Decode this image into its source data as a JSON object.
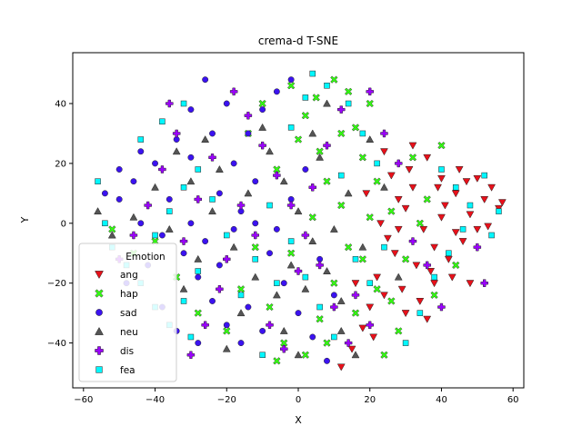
{
  "chart_data": {
    "type": "scatter",
    "title": "crema-d T-SNE",
    "xlabel": "X",
    "ylabel": "Y",
    "xlim": [
      -63,
      63
    ],
    "ylim": [
      -55,
      57
    ],
    "xticks": [
      -60,
      -40,
      -20,
      0,
      20,
      40,
      60
    ],
    "yticks": [
      -40,
      -20,
      0,
      20,
      40
    ],
    "grid": false,
    "legend": {
      "title": "Emotion",
      "placement": "lower-left"
    },
    "series": [
      {
        "name": "ang",
        "marker": "triangle-down",
        "color": "#e8101a",
        "points": [
          [
            52,
            8
          ],
          [
            56,
            5
          ],
          [
            48,
            3
          ],
          [
            44,
            10
          ],
          [
            40,
            15
          ],
          [
            36,
            22
          ],
          [
            32,
            26
          ],
          [
            50,
            -2
          ],
          [
            46,
            -6
          ],
          [
            42,
            -12
          ],
          [
            38,
            -20
          ],
          [
            34,
            -26
          ],
          [
            30,
            -30
          ],
          [
            54,
            12
          ],
          [
            45,
            18
          ],
          [
            28,
            8
          ],
          [
            25,
            -5
          ],
          [
            22,
            -18
          ],
          [
            20,
            -28
          ],
          [
            18,
            -35
          ],
          [
            15,
            -42
          ],
          [
            12,
            -48
          ],
          [
            40,
            2
          ],
          [
            35,
            -2
          ],
          [
            30,
            5
          ],
          [
            26,
            16
          ],
          [
            24,
            24
          ],
          [
            47,
            14
          ],
          [
            53,
            -1
          ],
          [
            38,
            -8
          ],
          [
            33,
            -14
          ],
          [
            29,
            -22
          ],
          [
            43,
            -18
          ],
          [
            48,
            -20
          ],
          [
            39,
            12
          ],
          [
            31,
            18
          ],
          [
            27,
            -10
          ],
          [
            23,
            0
          ],
          [
            19,
            10
          ],
          [
            16,
            -20
          ],
          [
            21,
            -38
          ],
          [
            36,
            -32
          ],
          [
            50,
            15
          ],
          [
            57,
            7
          ],
          [
            44,
            -3
          ],
          [
            41,
            6
          ],
          [
            37,
            -16
          ],
          [
            32,
            12
          ],
          [
            28,
            -2
          ],
          [
            24,
            -24
          ]
        ]
      },
      {
        "name": "hap",
        "marker": "x",
        "color": "#33ff11",
        "points": [
          [
            10,
            48
          ],
          [
            5,
            42
          ],
          [
            12,
            30
          ],
          [
            18,
            22
          ],
          [
            22,
            14
          ],
          [
            26,
            4
          ],
          [
            14,
            -8
          ],
          [
            10,
            -20
          ],
          [
            6,
            -32
          ],
          [
            2,
            -44
          ],
          [
            -4,
            -40
          ],
          [
            -8,
            -28
          ],
          [
            -2,
            -10
          ],
          [
            4,
            2
          ],
          [
            8,
            14
          ],
          [
            16,
            32
          ],
          [
            20,
            40
          ],
          [
            -10,
            40
          ],
          [
            -14,
            30
          ],
          [
            -6,
            18
          ],
          [
            0,
            28
          ],
          [
            30,
            -12
          ],
          [
            34,
            0
          ],
          [
            38,
            -24
          ],
          [
            28,
            -36
          ],
          [
            24,
            -44
          ],
          [
            18,
            -12
          ],
          [
            12,
            6
          ],
          [
            -12,
            -8
          ],
          [
            -16,
            -22
          ],
          [
            -20,
            -36
          ],
          [
            -28,
            -30
          ],
          [
            -34,
            -18
          ],
          [
            -40,
            -6
          ],
          [
            -46,
            -10
          ],
          [
            -52,
            -2
          ],
          [
            6,
            24
          ],
          [
            2,
            36
          ],
          [
            -2,
            46
          ],
          [
            14,
            44
          ],
          [
            22,
            -22
          ],
          [
            16,
            -30
          ],
          [
            8,
            -40
          ],
          [
            -6,
            -46
          ],
          [
            32,
            22
          ],
          [
            40,
            26
          ],
          [
            44,
            -14
          ],
          [
            36,
            8
          ],
          [
            26,
            -26
          ],
          [
            20,
            2
          ]
        ]
      },
      {
        "name": "sad",
        "marker": "circle",
        "color": "#3b12f0",
        "points": [
          [
            -26,
            48
          ],
          [
            -30,
            38
          ],
          [
            -34,
            28
          ],
          [
            -40,
            20
          ],
          [
            -46,
            14
          ],
          [
            -50,
            8
          ],
          [
            -44,
            0
          ],
          [
            -38,
            -4
          ],
          [
            -32,
            -10
          ],
          [
            -28,
            -18
          ],
          [
            -24,
            -26
          ],
          [
            -20,
            -34
          ],
          [
            -16,
            -40
          ],
          [
            -22,
            10
          ],
          [
            -18,
            20
          ],
          [
            -14,
            30
          ],
          [
            -10,
            38
          ],
          [
            -6,
            44
          ],
          [
            -2,
            48
          ],
          [
            -12,
            0
          ],
          [
            -8,
            -10
          ],
          [
            -4,
            -20
          ],
          [
            0,
            -30
          ],
          [
            4,
            -38
          ],
          [
            8,
            -46
          ],
          [
            -36,
            8
          ],
          [
            -30,
            0
          ],
          [
            -26,
            -6
          ],
          [
            -42,
            -14
          ],
          [
            -48,
            -20
          ],
          [
            -30,
            22
          ],
          [
            -24,
            30
          ],
          [
            -20,
            40
          ],
          [
            -16,
            4
          ],
          [
            -12,
            14
          ],
          [
            -6,
            -2
          ],
          [
            -2,
            8
          ],
          [
            2,
            18
          ],
          [
            6,
            -12
          ],
          [
            10,
            -24
          ],
          [
            -38,
            -28
          ],
          [
            -34,
            -36
          ],
          [
            -28,
            -40
          ],
          [
            -22,
            -14
          ],
          [
            -18,
            -2
          ],
          [
            -44,
            24
          ],
          [
            -50,
            18
          ],
          [
            -54,
            10
          ],
          [
            -14,
            -28
          ],
          [
            -10,
            -36
          ]
        ]
      },
      {
        "name": "neu",
        "marker": "triangle-up",
        "color": "#555555",
        "points": [
          [
            -8,
            24
          ],
          [
            -4,
            14
          ],
          [
            0,
            4
          ],
          [
            4,
            -6
          ],
          [
            8,
            -16
          ],
          [
            12,
            -26
          ],
          [
            -12,
            -18
          ],
          [
            -16,
            -30
          ],
          [
            -20,
            -42
          ],
          [
            -4,
            -36
          ],
          [
            0,
            -44
          ],
          [
            4,
            30
          ],
          [
            8,
            40
          ],
          [
            -14,
            10
          ],
          [
            -18,
            -8
          ],
          [
            -22,
            18
          ],
          [
            -26,
            28
          ],
          [
            -40,
            12
          ],
          [
            -46,
            2
          ],
          [
            -52,
            -4
          ],
          [
            -56,
            4
          ],
          [
            10,
            -2
          ],
          [
            14,
            10
          ],
          [
            18,
            -8
          ],
          [
            -6,
            -24
          ],
          [
            -2,
            -14
          ],
          [
            2,
            -22
          ],
          [
            6,
            22
          ],
          [
            -10,
            32
          ],
          [
            -32,
            -22
          ],
          [
            16,
            -44
          ],
          [
            12,
            -36
          ],
          [
            -24,
            4
          ],
          [
            -28,
            -12
          ],
          [
            -36,
            -2
          ],
          [
            20,
            28
          ],
          [
            24,
            12
          ],
          [
            28,
            -18
          ],
          [
            -30,
            14
          ],
          [
            -34,
            24
          ]
        ]
      },
      {
        "name": "dis",
        "marker": "plus",
        "color": "#9b00ff",
        "points": [
          [
            -18,
            44
          ],
          [
            -14,
            36
          ],
          [
            -10,
            26
          ],
          [
            -6,
            16
          ],
          [
            -2,
            6
          ],
          [
            2,
            -4
          ],
          [
            6,
            -14
          ],
          [
            10,
            -28
          ],
          [
            14,
            -40
          ],
          [
            -22,
            -22
          ],
          [
            -26,
            -34
          ],
          [
            -30,
            -44
          ],
          [
            -34,
            30
          ],
          [
            -38,
            18
          ],
          [
            -42,
            6
          ],
          [
            -46,
            -4
          ],
          [
            -50,
            -12
          ],
          [
            -8,
            -34
          ],
          [
            -4,
            -42
          ],
          [
            0,
            -16
          ],
          [
            4,
            12
          ],
          [
            8,
            26
          ],
          [
            12,
            38
          ],
          [
            20,
            44
          ],
          [
            24,
            30
          ],
          [
            28,
            20
          ],
          [
            32,
            -6
          ],
          [
            36,
            -14
          ],
          [
            40,
            -28
          ],
          [
            50,
            -8
          ],
          [
            52,
            -20
          ],
          [
            -12,
            -4
          ],
          [
            -16,
            6
          ],
          [
            -20,
            -12
          ],
          [
            -24,
            22
          ],
          [
            16,
            -24
          ],
          [
            20,
            -34
          ],
          [
            -28,
            8
          ],
          [
            -32,
            -6
          ],
          [
            -36,
            40
          ]
        ]
      },
      {
        "name": "fea",
        "marker": "square",
        "color": "#00f7ff",
        "points": [
          [
            -56,
            14
          ],
          [
            -54,
            0
          ],
          [
            -52,
            -8
          ],
          [
            -48,
            -14
          ],
          [
            -44,
            -20
          ],
          [
            -40,
            -28
          ],
          [
            -36,
            -34
          ],
          [
            -30,
            -38
          ],
          [
            -40,
            -4
          ],
          [
            -36,
            4
          ],
          [
            -32,
            12
          ],
          [
            -28,
            18
          ],
          [
            -44,
            28
          ],
          [
            -38,
            34
          ],
          [
            -32,
            40
          ],
          [
            4,
            50
          ],
          [
            8,
            46
          ],
          [
            14,
            40
          ],
          [
            18,
            30
          ],
          [
            22,
            20
          ],
          [
            -2,
            -6
          ],
          [
            2,
            -18
          ],
          [
            6,
            -28
          ],
          [
            10,
            -38
          ],
          [
            -10,
            -44
          ],
          [
            -6,
            -20
          ],
          [
            -2,
            32
          ],
          [
            2,
            42
          ],
          [
            -8,
            6
          ],
          [
            -12,
            -12
          ],
          [
            -16,
            -24
          ],
          [
            -20,
            -4
          ],
          [
            -24,
            8
          ],
          [
            -28,
            -16
          ],
          [
            -32,
            -26
          ],
          [
            40,
            18
          ],
          [
            44,
            12
          ],
          [
            48,
            6
          ],
          [
            52,
            16
          ],
          [
            56,
            4
          ],
          [
            54,
            -4
          ],
          [
            46,
            -2
          ],
          [
            42,
            -10
          ],
          [
            38,
            -18
          ],
          [
            34,
            -30
          ],
          [
            30,
            -40
          ],
          [
            24,
            -8
          ],
          [
            20,
            -20
          ],
          [
            16,
            -12
          ],
          [
            12,
            16
          ]
        ]
      }
    ]
  }
}
